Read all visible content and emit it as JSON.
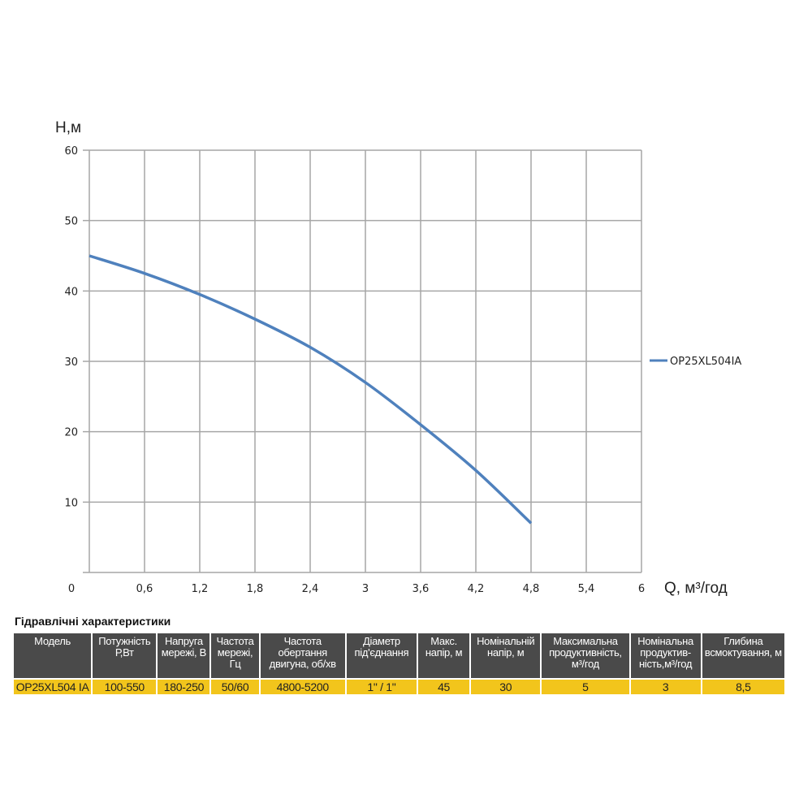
{
  "chart_data": {
    "type": "line",
    "ylabel": "Н,м",
    "xlabel": "Q,  м³/год",
    "xlim": [
      0,
      6
    ],
    "ylim": [
      0,
      60
    ],
    "x_ticks": [
      "0",
      "0,6",
      "1,2",
      "1,8",
      "2,4",
      "3",
      "3,6",
      "4,2",
      "4,8",
      "5,4",
      "6"
    ],
    "y_ticks": [
      "10",
      "20",
      "30",
      "40",
      "50",
      "60"
    ],
    "grid": true,
    "legend_position": "right",
    "series": [
      {
        "name": "OP25XL504IA",
        "color": "#4f81bd",
        "x": [
          0,
          0.6,
          1.2,
          1.8,
          2.4,
          3,
          3.6,
          4.2,
          4.8
        ],
        "y": [
          45,
          42.5,
          39.5,
          36,
          32,
          27,
          21,
          14.5,
          7
        ]
      }
    ]
  },
  "table": {
    "title": "Гідравлічні характеристики",
    "headers": [
      "Модель",
      "Потужність Р,Вт",
      "Напруга мережі, В",
      "Частота мережі, Гц",
      "Частота обертання двигуна, об/хв",
      "Діаметр під'єднання",
      "Макс. напір, м",
      "Номінальній напір, м",
      "Максимальна продуктивність, м³/год",
      "Номінальна продуктив-ність,м³/год",
      "Глибина всмоктування, м"
    ],
    "row": [
      "OP25XL504 IA",
      "100-550",
      "180-250",
      "50/60",
      "4800-5200",
      "1\" / 1\"",
      "45",
      "30",
      "5",
      "3",
      "8,5"
    ],
    "header_color": "#4a4a4a",
    "row_color": "#f2c51c"
  }
}
